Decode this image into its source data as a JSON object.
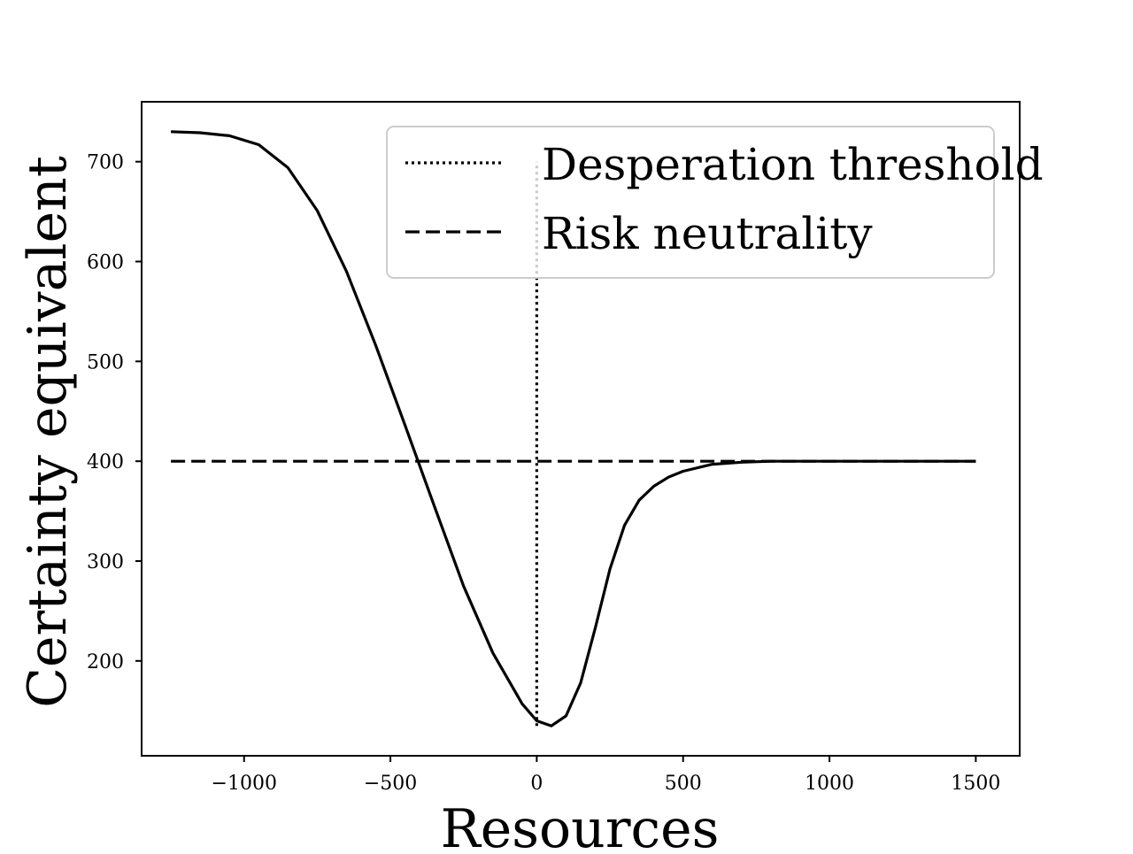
{
  "chart_data": {
    "type": "line",
    "title": "",
    "xlabel": "Resources",
    "ylabel": "Certainty equivalent",
    "xlim": [
      -1350,
      1650
    ],
    "ylim": [
      105,
      760
    ],
    "x_ticks": [
      -1000,
      -500,
      0,
      500,
      1000,
      1500
    ],
    "x_tick_labels": [
      "−1000",
      "−500",
      "0",
      "500",
      "1000",
      "1500"
    ],
    "y_ticks": [
      200,
      300,
      400,
      500,
      600,
      700
    ],
    "y_tick_labels": [
      "200",
      "300",
      "400",
      "500",
      "600",
      "700"
    ],
    "grid": false,
    "legend_position": "top-right",
    "legend": [
      {
        "label": "Desperation threshold",
        "style": "dotted"
      },
      {
        "label": "Risk neutrality",
        "style": "dashed"
      }
    ],
    "series": [
      {
        "style": "solid",
        "color": "#000000",
        "x": [
          -1250,
          -1150,
          -1050,
          -950,
          -850,
          -750,
          -650,
          -550,
          -450,
          -350,
          -250,
          -150,
          -50,
          0,
          50,
          100,
          150,
          200,
          250,
          300,
          350,
          400,
          450,
          500,
          600,
          700,
          800,
          900,
          1000,
          1200,
          1500
        ],
        "y": [
          730,
          729,
          726,
          717,
          694,
          651,
          590,
          516,
          436,
          355,
          275,
          208,
          157,
          140,
          135,
          145,
          178,
          233,
          292,
          336,
          361,
          375,
          384,
          390,
          397,
          399,
          400,
          400,
          400,
          400,
          400
        ]
      },
      {
        "name": "Risk neutrality",
        "style": "dashed",
        "color": "#000000",
        "x": [
          -1250,
          1500
        ],
        "y": [
          400,
          400
        ]
      },
      {
        "name": "Desperation threshold",
        "style": "dotted",
        "color": "#000000",
        "x": [
          0,
          0
        ],
        "y": [
          135,
          700
        ]
      }
    ]
  }
}
